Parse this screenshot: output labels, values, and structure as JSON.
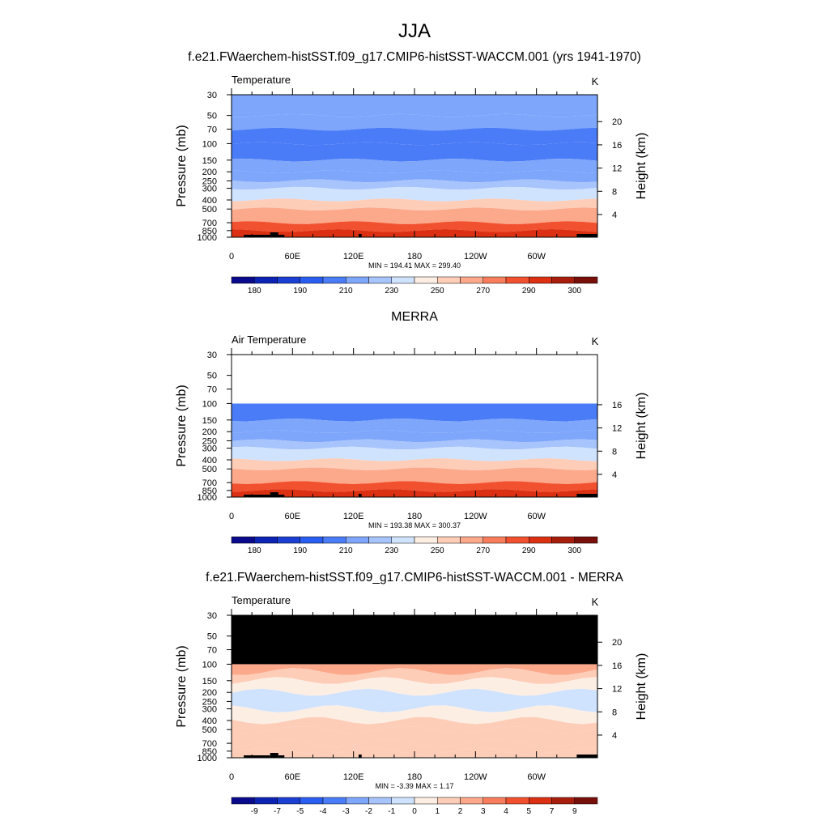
{
  "title": "JJA",
  "chart_data": [
    {
      "type": "heatmap",
      "panel_title": "f.e21.FWaerchem-histSST.f09_g17.CMIP6-histSST-WACCM.001 (yrs 1941-1970)",
      "left_label": "Temperature",
      "units": "K",
      "ylabel": "Pressure (mb)",
      "ylabel_right": "Height (km)",
      "x_ticks": [
        "0",
        "60E",
        "120E",
        "180",
        "120W",
        "60W"
      ],
      "x_range": [
        0,
        360
      ],
      "y_ticks": [
        "30",
        "50",
        "70",
        "100",
        "150",
        "200",
        "250",
        "300",
        "400",
        "500",
        "700",
        "850",
        "1000"
      ],
      "y_range_mb": [
        30,
        1000
      ],
      "height_ticks": [
        "4",
        "8",
        "12",
        "16",
        "20"
      ],
      "stats": "MIN = 194.41  MAX = 299.40",
      "colorbar_levels": [
        180,
        185,
        190,
        200,
        210,
        220,
        230,
        240,
        250,
        260,
        270,
        280,
        290,
        295,
        300
      ],
      "colorbar_labels": [
        "180",
        "190",
        "210",
        "230",
        "250",
        "270",
        "290",
        "300"
      ],
      "profile": {
        "pressure_mb": [
          30,
          50,
          70,
          100,
          150,
          200,
          250,
          300,
          400,
          500,
          700,
          850,
          1000
        ],
        "temperature_K": [
          221,
          214,
          207,
          201,
          208,
          215,
          223,
          231,
          247,
          259,
          276,
          289,
          299
        ]
      },
      "masked_above_mb": null
    },
    {
      "type": "heatmap",
      "panel_title": "MERRA",
      "left_label": "Air Temperature",
      "units": "K",
      "ylabel": "Pressure (mb)",
      "ylabel_right": "Height (km)",
      "x_ticks": [
        "0",
        "60E",
        "120E",
        "180",
        "120W",
        "60W"
      ],
      "x_range": [
        0,
        360
      ],
      "y_ticks": [
        "30",
        "50",
        "70",
        "100",
        "150",
        "200",
        "250",
        "300",
        "400",
        "500",
        "700",
        "850",
        "1000"
      ],
      "y_range_mb": [
        30,
        1000
      ],
      "height_ticks": [
        "4",
        "8",
        "12",
        "16"
      ],
      "stats": "MIN = 193.38  MAX = 300.37",
      "colorbar_levels": [
        180,
        185,
        190,
        200,
        210,
        220,
        230,
        240,
        250,
        260,
        270,
        280,
        290,
        295,
        300
      ],
      "colorbar_labels": [
        "180",
        "190",
        "210",
        "230",
        "250",
        "270",
        "290",
        "300"
      ],
      "profile": {
        "pressure_mb": [
          100,
          150,
          200,
          250,
          300,
          400,
          500,
          700,
          850,
          1000
        ],
        "temperature_K": [
          199,
          207,
          214,
          222,
          230,
          246,
          258,
          276,
          289,
          300
        ]
      },
      "masked_above_mb": 100
    },
    {
      "type": "heatmap",
      "panel_title": "f.e21.FWaerchem-histSST.f09_g17.CMIP6-histSST-WACCM.001 - MERRA",
      "left_label": "Temperature",
      "units": "K",
      "ylabel": "Pressure (mb)",
      "ylabel_right": "Height (km)",
      "x_ticks": [
        "0",
        "60E",
        "120E",
        "180",
        "120W",
        "60W"
      ],
      "x_range": [
        0,
        360
      ],
      "y_ticks": [
        "30",
        "50",
        "70",
        "100",
        "150",
        "200",
        "250",
        "300",
        "400",
        "500",
        "700",
        "850",
        "1000"
      ],
      "y_range_mb": [
        30,
        1000
      ],
      "height_ticks": [
        "4",
        "8",
        "12",
        "16",
        "20"
      ],
      "stats": "MIN =  -3.39  MAX =   1.17",
      "colorbar_levels": [
        -9,
        -8,
        -7,
        -6,
        -5,
        -4,
        -3,
        -2,
        -1,
        0,
        1,
        2,
        3,
        4,
        5,
        6,
        7,
        8,
        9
      ],
      "colorbar_labels": [
        "-9",
        "-7",
        "-5",
        "-4",
        "-3",
        "-2",
        "-1",
        "0",
        "1",
        "2",
        "3",
        "4",
        "5",
        "7",
        "9"
      ],
      "profile": {
        "pressure_mb": [
          100,
          120,
          150,
          200,
          250,
          300,
          400,
          500,
          700,
          850,
          1000
        ],
        "difference_K": [
          0.6,
          -0.5,
          -1.2,
          -1.8,
          -2.3,
          -1.8,
          -1.0,
          -0.6,
          -0.5,
          -0.9,
          -0.6
        ]
      },
      "masked_above_mb": 100,
      "masked_color": "#000000"
    }
  ],
  "palette": [
    "#0a0a8c",
    "#0d23b4",
    "#1a3fd2",
    "#2a5ef0",
    "#4a7cf8",
    "#7ea6fb",
    "#a8c4fc",
    "#cfe2fe",
    "#fdeee4",
    "#fdcdb8",
    "#fca98b",
    "#f87d5c",
    "#f2512f",
    "#dc3012",
    "#a81e0d",
    "#780f0a"
  ]
}
